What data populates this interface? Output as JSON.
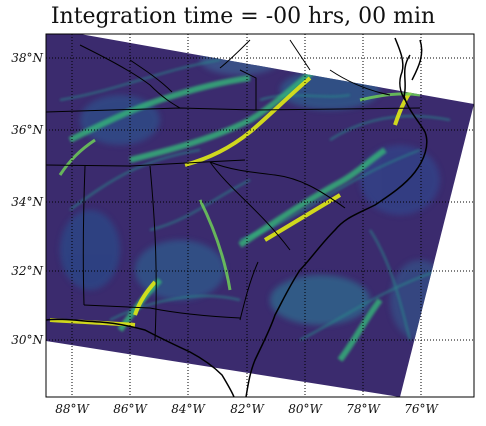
{
  "title": "Integration time = -00 hrs, 00 min",
  "colormap": "viridis",
  "colors": {
    "field_low": "#3b2b6e",
    "field_mid": "#2a7a8c",
    "field_high": "#d8e219",
    "grid": "#000000",
    "coast": "#000000",
    "background": "#ffffff"
  },
  "grid_style": "dotted",
  "lat_labels": [
    {
      "lat": 38,
      "label": "38°N"
    },
    {
      "lat": 36,
      "label": "36°N"
    },
    {
      "lat": 34,
      "label": "34°N"
    },
    {
      "lat": 32,
      "label": "32°N"
    },
    {
      "lat": 30,
      "label": "30°N"
    }
  ],
  "lon_labels": [
    {
      "lon": -88,
      "label": "88°W"
    },
    {
      "lon": -86,
      "label": "86°W"
    },
    {
      "lon": -84,
      "label": "84°W"
    },
    {
      "lon": -82,
      "label": "82°W"
    },
    {
      "lon": -80,
      "label": "80°W"
    },
    {
      "lon": -78,
      "label": "78°W"
    },
    {
      "lon": -76,
      "label": "76°W"
    }
  ]
}
